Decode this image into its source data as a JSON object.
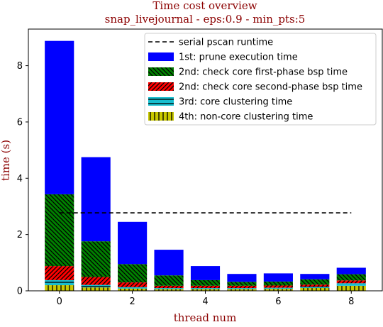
{
  "chart_data": {
    "type": "bar",
    "stacked": true,
    "title": "Time cost overview",
    "subtitle": "snap_livejournal - eps:0.9 - min_pts:5",
    "xlabel": "thread num",
    "ylabel": "time (s)",
    "xlim": [
      -0.85,
      8.85
    ],
    "ylim": [
      0,
      9.3
    ],
    "x_ticks": [
      "0",
      "2",
      "4",
      "6",
      "8"
    ],
    "y_ticks": [
      "0",
      "2",
      "4",
      "6",
      "8"
    ],
    "categories": [
      0,
      1,
      2,
      3,
      4,
      5,
      6,
      7,
      8
    ],
    "reference_line": {
      "name": "serial pscan runtime",
      "value": 2.77,
      "x_range": [
        0,
        8
      ],
      "style": "dashed",
      "color": "#000000"
    },
    "series": [
      {
        "name": "4th: non-core clustering time",
        "color": "#c8c800",
        "hatch": "vertical",
        "values": [
          0.2,
          0.12,
          0.08,
          0.06,
          0.06,
          0.06,
          0.07,
          0.1,
          0.18
        ]
      },
      {
        "name": "3rd: core clustering time",
        "color": "#17becf",
        "hatch": "horizontal",
        "values": [
          0.18,
          0.09,
          0.05,
          0.04,
          0.04,
          0.04,
          0.04,
          0.05,
          0.09
        ]
      },
      {
        "name": "2nd: check core second-phase bsp time",
        "color": "#ff0000",
        "hatch": "forward-diagonal",
        "values": [
          0.5,
          0.28,
          0.17,
          0.08,
          0.08,
          0.08,
          0.08,
          0.07,
          0.1
        ]
      },
      {
        "name": "2nd: check core first-phase bsp time",
        "color": "#008000",
        "hatch": "back-diagonal",
        "values": [
          2.55,
          1.27,
          0.65,
          0.37,
          0.2,
          0.14,
          0.14,
          0.19,
          0.22
        ]
      },
      {
        "name": "1st: prune execution time",
        "color": "#0000ff",
        "hatch": "none",
        "values": [
          5.45,
          2.99,
          1.5,
          0.91,
          0.5,
          0.28,
          0.29,
          0.19,
          0.23
        ]
      }
    ],
    "legend": {
      "placement": "top-right",
      "order": [
        "serial pscan runtime",
        "1st: prune execution time",
        "2nd: check core first-phase bsp time",
        "2nd: check core second-phase bsp time",
        "3rd: core clustering time",
        "4th: non-core clustering time"
      ]
    },
    "grid": false
  }
}
